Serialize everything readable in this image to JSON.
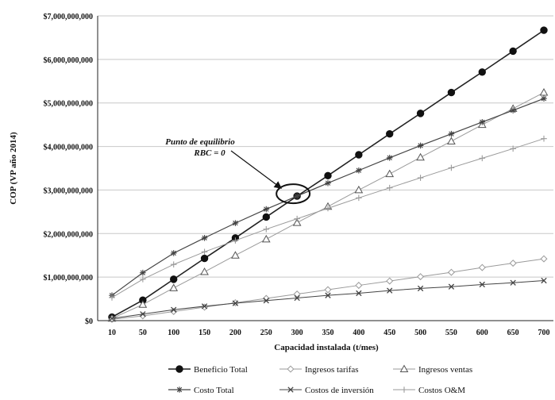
{
  "chart_data": {
    "type": "line",
    "title": "",
    "xlabel": "Capacidad instalada (t/mes)",
    "ylabel": "COP (VP año 2014)",
    "categories": [
      "10",
      "50",
      "100",
      "150",
      "200",
      "250",
      "300",
      "350",
      "400",
      "450",
      "500",
      "550",
      "600",
      "650",
      "700"
    ],
    "ylim": [
      0,
      7000000000
    ],
    "yticks": [
      "$0",
      "$1,000,000,000",
      "$2,000,000,000",
      "$3,000,000,000",
      "$4,000,000,000",
      "$5,000,000,000",
      "$6,000,000,000",
      "$7,000,000,000"
    ],
    "grid": "horizontal",
    "legend_position": "bottom",
    "series": [
      {
        "name": "Beneficio Total",
        "marker": "filled-circle",
        "color": "#222222",
        "values": [
          80000000,
          470000000,
          950000000,
          1430000000,
          1900000000,
          2380000000,
          2860000000,
          3330000000,
          3810000000,
          4290000000,
          4760000000,
          5240000000,
          5710000000,
          6190000000,
          6670000000
        ]
      },
      {
        "name": "Ingresos tarifas",
        "marker": "open-diamond",
        "color": "#9a9a9a",
        "values": [
          30000000,
          110000000,
          210000000,
          310000000,
          410000000,
          510000000,
          610000000,
          710000000,
          810000000,
          910000000,
          1010000000,
          1110000000,
          1220000000,
          1320000000,
          1420000000
        ]
      },
      {
        "name": "Ingresos ventas",
        "marker": "open-triangle",
        "color": "#9a9a9a",
        "values": [
          50000000,
          370000000,
          750000000,
          1120000000,
          1500000000,
          1870000000,
          2250000000,
          2620000000,
          3000000000,
          3370000000,
          3750000000,
          4120000000,
          4500000000,
          4870000000,
          5240000000
        ]
      },
      {
        "name": "Costo Total",
        "marker": "asterisk",
        "color": "#444444",
        "values": [
          580000000,
          1100000000,
          1550000000,
          1900000000,
          2240000000,
          2560000000,
          2860000000,
          3160000000,
          3450000000,
          3740000000,
          4020000000,
          4290000000,
          4560000000,
          4830000000,
          5100000000
        ]
      },
      {
        "name": "Costos de inversión",
        "marker": "x",
        "color": "#444444",
        "values": [
          50000000,
          150000000,
          250000000,
          330000000,
          400000000,
          460000000,
          520000000,
          580000000,
          630000000,
          690000000,
          740000000,
          780000000,
          830000000,
          870000000,
          920000000
        ]
      },
      {
        "name": "Costos O&M",
        "marker": "plus",
        "color": "#9a9a9a",
        "values": [
          530000000,
          950000000,
          1290000000,
          1580000000,
          1840000000,
          2100000000,
          2340000000,
          2580000000,
          2820000000,
          3050000000,
          3280000000,
          3510000000,
          3730000000,
          3950000000,
          4180000000
        ]
      }
    ],
    "annotation": {
      "line1": "Punto de equilibrio",
      "line2": "RBC = 0",
      "x": "300",
      "y": 2860000000
    }
  }
}
